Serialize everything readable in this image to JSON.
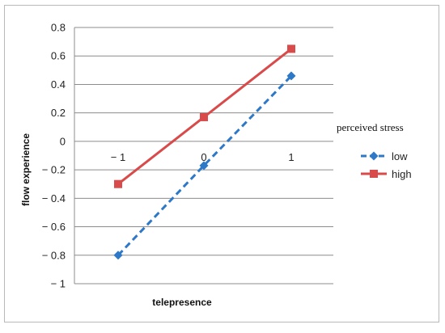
{
  "chart_data": {
    "type": "line",
    "xlabel": "telepresence",
    "ylabel": "flow experience",
    "x": [
      -1,
      0,
      1
    ],
    "x_tick_labels": [
      "− 1",
      "0",
      "1"
    ],
    "ylim": [
      -1,
      0.8
    ],
    "y_ticks": [
      0.8,
      0.6,
      0.4,
      0.2,
      0,
      -0.2,
      -0.4,
      -0.6,
      -0.8,
      -1
    ],
    "y_tick_labels": [
      "0.8",
      "0.6",
      "0.4",
      "0.2",
      "0",
      "− 0.2",
      "− 0.4",
      "− 0.6",
      "− 0.8",
      "− 1"
    ],
    "grid": true,
    "legend_title": "perceived stress",
    "legend_position": "right",
    "series": [
      {
        "name": "low",
        "values": [
          -0.8,
          -0.17,
          0.46
        ],
        "color": "#2e78c8",
        "style": "dashed",
        "marker": "diamond"
      },
      {
        "name": "high",
        "values": [
          -0.3,
          0.17,
          0.65
        ],
        "color": "#d94a4a",
        "style": "solid",
        "marker": "square"
      }
    ]
  }
}
